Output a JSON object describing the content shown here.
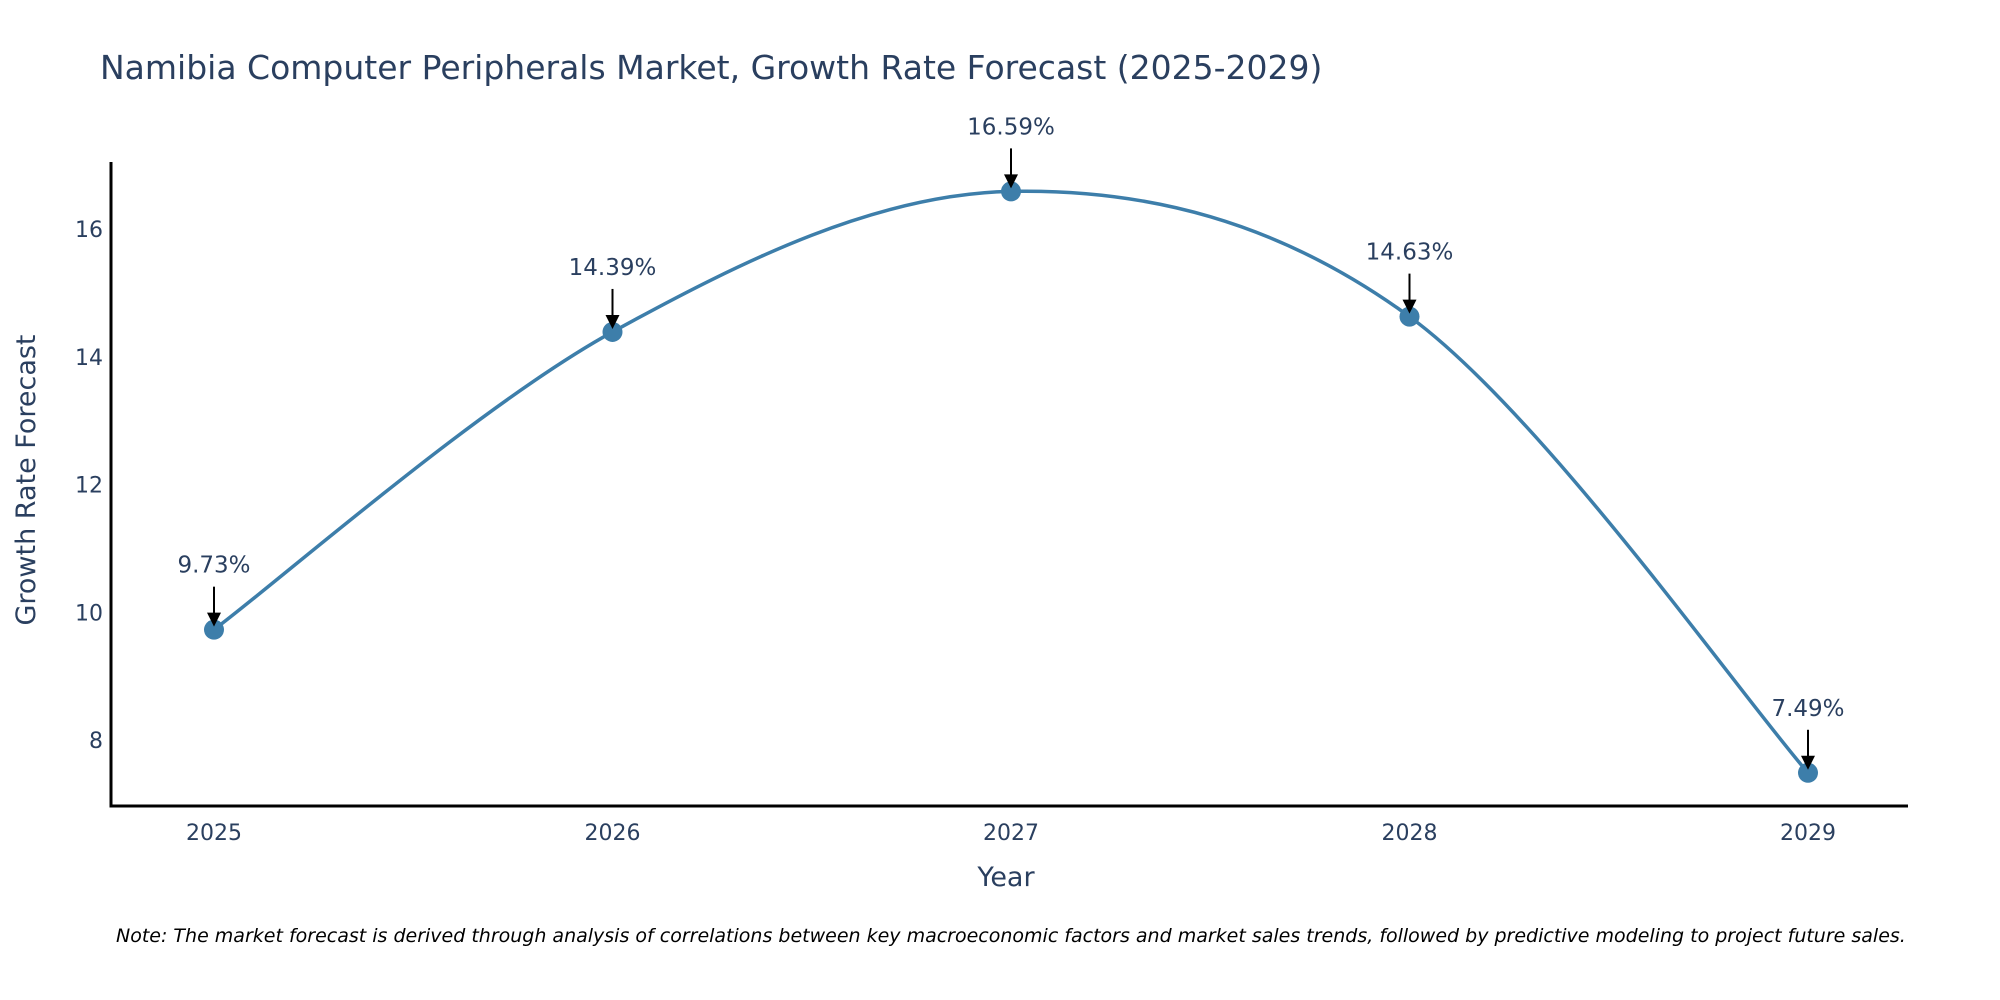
{
  "colors": {
    "line": "#3d7eaa",
    "marker": "#3d7eaa",
    "text": "#2a3f5f",
    "axis": "#000000"
  },
  "note": "Note: The market forecast is derived through analysis of correlations between key macroeconomic factors and market sales trends, followed by predictive modeling to project future sales.",
  "chart_data": {
    "type": "line",
    "title": "Namibia Computer Peripherals Market, Growth Rate Forecast (2025-2029)",
    "xlabel": "Year",
    "ylabel": "Growth Rate Forecast",
    "categories": [
      "2025",
      "2026",
      "2027",
      "2028",
      "2029"
    ],
    "series": [
      {
        "name": "Growth Rate Forecast",
        "values": [
          9.73,
          14.39,
          16.59,
          14.63,
          7.49
        ]
      }
    ],
    "data_labels": [
      "9.73%",
      "14.39%",
      "16.59%",
      "14.63%",
      "7.49%"
    ],
    "yticks": [
      8,
      10,
      12,
      14,
      16
    ],
    "ylim": [
      6.97,
      17.05
    ],
    "grid": false,
    "legend": "none",
    "line_shape": "spline"
  }
}
